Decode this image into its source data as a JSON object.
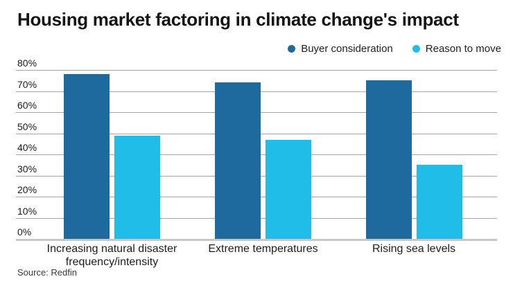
{
  "title": "Housing market factoring in climate change's impact",
  "source": "Source: Redfin",
  "colors": {
    "series_dark_blue": "#1E6A9F",
    "series_cyan": "#20BDE8",
    "gridline": "#a4a4a4",
    "baseline": "#c7c7c7",
    "title_text": "#141414",
    "axis_text": "#1a1a1a",
    "source_text": "#383838"
  },
  "chart_data": {
    "type": "bar",
    "title": "Housing market factoring in climate change's impact",
    "categories": [
      "Increasing natural disaster frequency/intensity",
      "Extreme temperatures",
      "Rising sea levels"
    ],
    "series": [
      {
        "name": "Buyer consideration",
        "color": "#1E6A9F",
        "values": [
          78,
          74,
          75
        ]
      },
      {
        "name": "Reason to move",
        "color": "#20BDE8",
        "values": [
          49,
          47,
          35
        ]
      }
    ],
    "xlabel": "",
    "ylabel": "",
    "ylim": [
      0,
      80
    ],
    "yticks": [
      0,
      10,
      20,
      30,
      40,
      50,
      60,
      70,
      80
    ],
    "ytick_suffix": "%",
    "grid": true,
    "legend_position": "top-right",
    "source": "Source: Redfin"
  }
}
